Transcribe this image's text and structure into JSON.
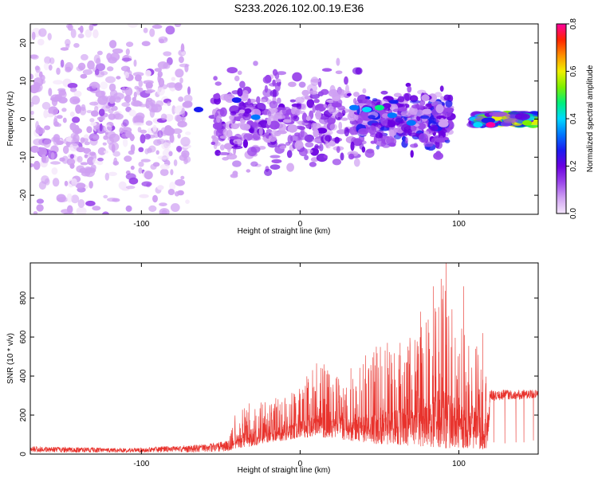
{
  "title": "S233.2026.102.00.19.E36",
  "chart_data": [
    {
      "type": "heatmap",
      "xlabel": "Height of straight line (km)",
      "ylabel": "Frequency (Hz)",
      "xlim": [
        -170,
        150
      ],
      "ylim": [
        -25,
        25
      ],
      "x_ticks": [
        -100,
        0,
        100
      ],
      "y_ticks": [
        -20,
        -10,
        0,
        10,
        20
      ],
      "colorbar": {
        "label": "Normalized spectral amplitude",
        "range": [
          0.0,
          0.8
        ],
        "ticks": [
          "0.0",
          "0.2",
          "0.4",
          "0.6",
          "0.8"
        ],
        "colormap": [
          "#f4e6fb",
          "#cfa0f2",
          "#9a44ea",
          "#6a00e0",
          "#1b1bf0",
          "#0077ff",
          "#00d9ff",
          "#00f07a",
          "#7cf000",
          "#f0f000",
          "#ff9000",
          "#ff2400",
          "#ff00a0"
        ]
      },
      "regions": [
        {
          "x": [
            -170,
            -70
          ],
          "f": [
            -25,
            25
          ],
          "level": 0.08,
          "density": "scattered"
        },
        {
          "x": [
            -55,
            40
          ],
          "f": [
            -12,
            10
          ],
          "level": 0.15,
          "density": "dense"
        },
        {
          "x": [
            35,
            95
          ],
          "f": [
            -7,
            6
          ],
          "level": 0.2,
          "density": "dense"
        },
        {
          "x": [
            110,
            150
          ],
          "f": [
            -1.5,
            1.5
          ],
          "level": 0.45,
          "density": "continuous"
        }
      ],
      "hotspots": [
        {
          "x": -64,
          "f": 2.5,
          "level": 0.3
        },
        {
          "x": -40,
          "f": 5,
          "level": 0.3
        },
        {
          "x": -28,
          "f": 0.5,
          "level": 0.35
        },
        {
          "x": 34,
          "f": 3,
          "level": 0.35
        },
        {
          "x": 42,
          "f": 2.5,
          "level": 0.4
        },
        {
          "x": 50,
          "f": 3,
          "level": 0.45
        },
        {
          "x": 58,
          "f": 1,
          "level": 0.35
        },
        {
          "x": 70,
          "f": -1,
          "level": 0.35
        },
        {
          "x": 112,
          "f": -1.5,
          "level": 0.4
        },
        {
          "x": 120,
          "f": -1.5,
          "level": 0.8
        },
        {
          "x": 143,
          "f": -1,
          "level": 0.55
        }
      ]
    },
    {
      "type": "line",
      "xlabel": "Height of straight line (km)",
      "ylabel": "SNR (10 * v/v)",
      "xlim": [
        -170,
        150
      ],
      "ylim": [
        0,
        980
      ],
      "x_ticks": [
        -100,
        0,
        100
      ],
      "y_ticks": [
        0,
        200,
        400,
        600,
        800
      ],
      "series": [
        {
          "color": "#e8322c",
          "envelope": {
            "x": [
              -170,
              -110,
              -60,
              -45,
              -40,
              -30,
              -20,
              -10,
              0,
              10,
              20,
              30,
              40,
              50,
              60,
              70,
              80,
              90,
              100,
              110,
              118,
              120,
              130,
              140,
              150
            ],
            "ymin": [
              8,
              8,
              10,
              15,
              30,
              40,
              60,
              70,
              80,
              90,
              80,
              70,
              60,
              50,
              50,
              40,
              40,
              30,
              30,
              30,
              20,
              270,
              280,
              280,
              290
            ],
            "ymax": [
              40,
              30,
              50,
              70,
              230,
              260,
              280,
              300,
              350,
              470,
              420,
              380,
              500,
              560,
              560,
              620,
              680,
              980,
              700,
              660,
              450,
              330,
              330,
              330,
              330
            ]
          },
          "spikes": [
            {
              "x": -32,
              "y": 260
            },
            {
              "x": 15,
              "y": 460
            },
            {
              "x": 32,
              "y": 440
            },
            {
              "x": 48,
              "y": 550
            },
            {
              "x": 55,
              "y": 570
            },
            {
              "x": 63,
              "y": 570
            },
            {
              "x": 76,
              "y": 730
            },
            {
              "x": 84,
              "y": 860
            },
            {
              "x": 92,
              "y": 980
            },
            {
              "x": 103,
              "y": 860
            },
            {
              "x": 115,
              "y": 620
            }
          ],
          "dropouts": [
            {
              "x": 122,
              "y": 60
            },
            {
              "x": 129,
              "y": 55
            },
            {
              "x": 136,
              "y": 60
            },
            {
              "x": 141,
              "y": 60
            },
            {
              "x": 147,
              "y": 70
            }
          ]
        }
      ]
    }
  ]
}
